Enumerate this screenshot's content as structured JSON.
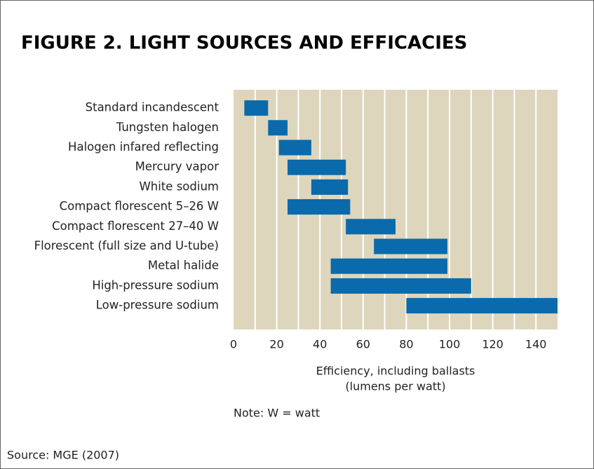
{
  "chart_data": {
    "type": "range_bar",
    "title": "FIGURE 2. LIGHT SOURCES AND EFFICACIES",
    "categories": [
      "Standard incandescent",
      "Tungsten halogen",
      "Halogen infared reflecting",
      "Mercury vapor",
      "White sodium",
      "Compact florescent 5–26 W",
      "Compact florescent 27–40 W",
      "Florescent (full size and U-tube)",
      "Metal halide",
      "High-pressure sodium",
      "Low-pressure sodium"
    ],
    "values": [
      [
        5,
        16
      ],
      [
        16,
        25
      ],
      [
        21,
        36
      ],
      [
        25,
        52
      ],
      [
        36,
        53
      ],
      [
        25,
        54
      ],
      [
        52,
        75
      ],
      [
        65,
        99
      ],
      [
        45,
        99
      ],
      [
        45,
        110
      ],
      [
        80,
        150
      ]
    ],
    "color": "#0a6aab",
    "background": "#ddd6bd",
    "xlim": [
      0,
      150
    ],
    "xticks": [
      0,
      20,
      40,
      60,
      80,
      100,
      120,
      140
    ],
    "grid_lines": [
      10,
      20,
      30,
      40,
      50,
      60,
      70,
      80,
      90,
      100,
      110,
      120,
      130,
      140
    ],
    "xlabel": [
      "Efficiency, including ballasts",
      "(lumens per watt)"
    ],
    "note": "Note: W = watt",
    "source": "Source: MGE (2007)"
  }
}
